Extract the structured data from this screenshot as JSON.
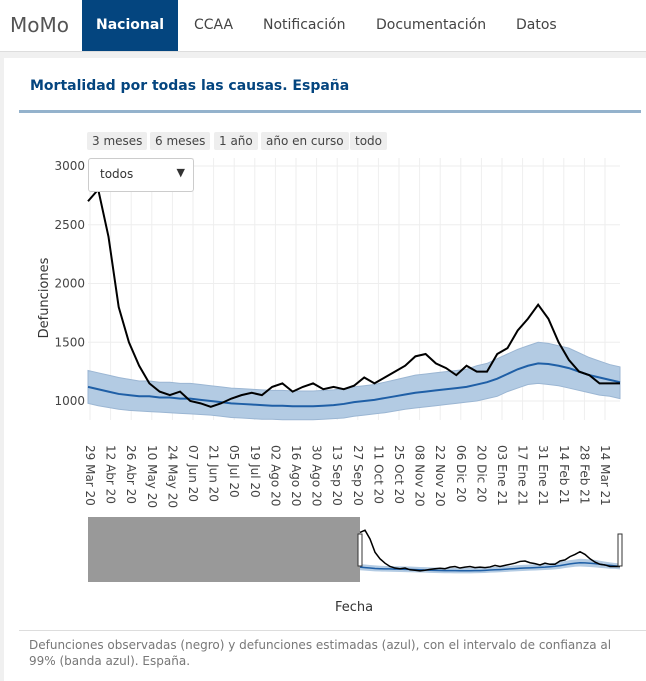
{
  "nav": {
    "brand": "MoMo",
    "tabs": [
      {
        "label": "Nacional",
        "active": true
      },
      {
        "label": "CCAA"
      },
      {
        "label": "Notificación"
      },
      {
        "label": "Documentación"
      },
      {
        "label": "Datos"
      }
    ]
  },
  "panel": {
    "title": "Mortalidad por todas las causas. España",
    "range_buttons": [
      "3 meses",
      "6 meses",
      "1 año",
      "año en curso",
      "todo"
    ],
    "dropdown": {
      "value": "todos"
    },
    "caption": "Defunciones observadas (negro) y defunciones estimadas (azul), con el intervalo de confianza al 99% (banda azul). España."
  },
  "colors": {
    "accent": "#04457f",
    "observed": "#000000",
    "expected": "#1f5fa6",
    "band": "#b3cbe3"
  },
  "chart_data": {
    "type": "line",
    "xlabel": "Fecha",
    "ylabel": "Defunciones",
    "ylim": [
      800,
      3000
    ],
    "yticks": [
      1000,
      1500,
      2000,
      2500,
      3000
    ],
    "grid": true,
    "xticks": [
      "29 Mar 20",
      "12 Abr 20",
      "26 Abr 20",
      "10 May 20",
      "24 May 20",
      "07 Jun 20",
      "21 Jun 20",
      "05 Jul 20",
      "19 Jul 20",
      "02 Ago 20",
      "16 Ago 20",
      "30 Ago 20",
      "13 Sep 20",
      "27 Sep 20",
      "11 Oct 20",
      "25 Oct 20",
      "08 Nov 20",
      "22 Nov 20",
      "06 Dic 20",
      "20 Dic 20",
      "03 Ene 21",
      "17 Ene 21",
      "31 Ene 21",
      "14 Feb 21",
      "28 Feb 21",
      "14 Mar 21"
    ],
    "x_start": "2020-03-27",
    "x_step_days": 7,
    "observed": [
      2700,
      2800,
      2400,
      1800,
      1500,
      1300,
      1150,
      1080,
      1050,
      1080,
      1000,
      980,
      950,
      980,
      1020,
      1050,
      1070,
      1050,
      1120,
      1150,
      1080,
      1120,
      1150,
      1100,
      1120,
      1100,
      1130,
      1200,
      1150,
      1200,
      1250,
      1300,
      1380,
      1400,
      1320,
      1280,
      1220,
      1300,
      1250,
      1250,
      1400,
      1450,
      1600,
      1700,
      1820,
      1700,
      1500,
      1350,
      1250,
      1220,
      1150,
      1150,
      1150
    ],
    "expected": [
      1120,
      1100,
      1080,
      1060,
      1050,
      1040,
      1040,
      1030,
      1030,
      1020,
      1020,
      1010,
      1000,
      990,
      980,
      975,
      970,
      965,
      960,
      960,
      955,
      955,
      955,
      960,
      965,
      975,
      990,
      1000,
      1010,
      1025,
      1040,
      1055,
      1070,
      1080,
      1090,
      1100,
      1110,
      1120,
      1140,
      1160,
      1190,
      1230,
      1270,
      1300,
      1320,
      1315,
      1300,
      1280,
      1250,
      1220,
      1200,
      1180,
      1160
    ],
    "lower": [
      980,
      960,
      945,
      930,
      920,
      915,
      910,
      905,
      900,
      895,
      890,
      885,
      880,
      870,
      860,
      855,
      850,
      845,
      845,
      840,
      840,
      840,
      840,
      845,
      850,
      855,
      870,
      880,
      890,
      900,
      915,
      930,
      940,
      950,
      960,
      970,
      980,
      990,
      1000,
      1020,
      1040,
      1080,
      1110,
      1140,
      1150,
      1140,
      1130,
      1110,
      1090,
      1070,
      1050,
      1040,
      1020
    ],
    "upper": [
      1260,
      1240,
      1220,
      1200,
      1185,
      1170,
      1170,
      1160,
      1160,
      1150,
      1150,
      1140,
      1130,
      1120,
      1110,
      1105,
      1100,
      1095,
      1090,
      1090,
      1085,
      1085,
      1085,
      1090,
      1095,
      1105,
      1120,
      1130,
      1140,
      1160,
      1180,
      1200,
      1220,
      1230,
      1240,
      1250,
      1260,
      1270,
      1300,
      1320,
      1360,
      1400,
      1440,
      1470,
      1500,
      1490,
      1470,
      1450,
      1410,
      1370,
      1340,
      1310,
      1290
    ],
    "range_selector": {
      "selected": [
        "2020-03-27",
        "2021-03-26"
      ]
    }
  }
}
